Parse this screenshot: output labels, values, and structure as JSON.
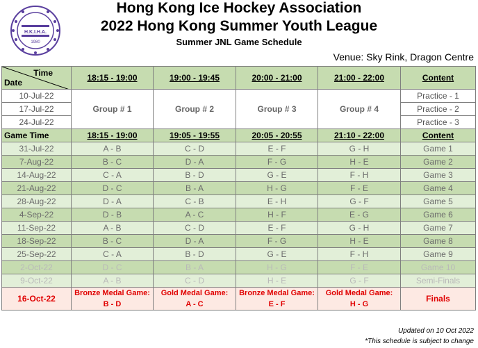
{
  "header": {
    "title_line1": "Hong Kong Ice Hockey Association",
    "title_line2": "2022 Hong Kong Summer Youth League",
    "subtitle": "Summer JNL Game Schedule",
    "venue": "Venue: Sky Rink, Dragon Centre",
    "logo_text": "H.K.I.H.A.",
    "logo_year": "1980"
  },
  "table": {
    "corner_time": "Time",
    "corner_date": "Date",
    "practice_slots": [
      "18:15 - 19:00",
      "19:00 - 19:45",
      "20:00 - 21:00",
      "21:00 - 22:00"
    ],
    "content_label": "Content",
    "practice_dates": [
      "10-Jul-22",
      "17-Jul-22",
      "24-Jul-22"
    ],
    "practice_groups": [
      "Group # 1",
      "Group # 2",
      "Group # 3",
      "Group # 4"
    ],
    "practice_content": [
      "Practice - 1",
      "Practice - 2",
      "Practice - 3"
    ],
    "game_time_label": "Game Time",
    "game_slots": [
      "18:15 - 19:00",
      "19:05 - 19:55",
      "20:05 - 20:55",
      "21:10 - 22:00"
    ],
    "games": [
      {
        "date": "31-Jul-22",
        "m1": "A - B",
        "m2": "C - D",
        "m3": "E - F",
        "m4": "G - H",
        "content": "Game 1"
      },
      {
        "date": "7-Aug-22",
        "m1": "B - C",
        "m2": "D - A",
        "m3": "F - G",
        "m4": "H - E",
        "content": "Game 2"
      },
      {
        "date": "14-Aug-22",
        "m1": "C - A",
        "m2": "B - D",
        "m3": "G - E",
        "m4": "F - H",
        "content": "Game 3"
      },
      {
        "date": "21-Aug-22",
        "m1": "D - C",
        "m2": "B - A",
        "m3": "H - G",
        "m4": "F - E",
        "content": "Game 4"
      },
      {
        "date": "28-Aug-22",
        "m1": "D - A",
        "m2": "C - B",
        "m3": "E - H",
        "m4": "G - F",
        "content": "Game 5"
      },
      {
        "date": "4-Sep-22",
        "m1": "D - B",
        "m2": "A - C",
        "m3": "H - F",
        "m4": "E - G",
        "content": "Game 6"
      },
      {
        "date": "11-Sep-22",
        "m1": "A - B",
        "m2": "C - D",
        "m3": "E - F",
        "m4": "G - H",
        "content": "Game 7"
      },
      {
        "date": "18-Sep-22",
        "m1": "B - C",
        "m2": "D - A",
        "m3": "F - G",
        "m4": "H - E",
        "content": "Game 8"
      },
      {
        "date": "25-Sep-22",
        "m1": "C - A",
        "m2": "B - D",
        "m3": "G - E",
        "m4": "F - H",
        "content": "Game 9"
      },
      {
        "date": "2-Oct-22",
        "m1": "D - C",
        "m2": "B - A",
        "m3": "H - G",
        "m4": "F - E",
        "content": "Game 10"
      },
      {
        "date": "9-Oct-22",
        "m1": "A - B",
        "m2": "C - D",
        "m3": "H - E",
        "m4": "G - F",
        "content": "Semi-Finals"
      }
    ],
    "finals": {
      "date": "16-Oct-22",
      "m1_title": "Bronze Medal Game:",
      "m1_teams": "B - D",
      "m2_title": "Gold Medal Game:",
      "m2_teams": "A - C",
      "m3_title": "Bronze Medal Game:",
      "m3_teams": "E - F",
      "m4_title": "Gold Medal Game:",
      "m4_teams": "H - G",
      "content": "Finals"
    }
  },
  "footer": {
    "updated": "Updated on 10 Oct 2022",
    "note": "*This schedule is subject to change"
  },
  "colors": {
    "header_green": "#c6dcb0",
    "row_light": "#e2efd8",
    "finals_bg": "#fde9e3",
    "finals_text": "#e00000",
    "logo_purple": "#5a3f9e"
  }
}
